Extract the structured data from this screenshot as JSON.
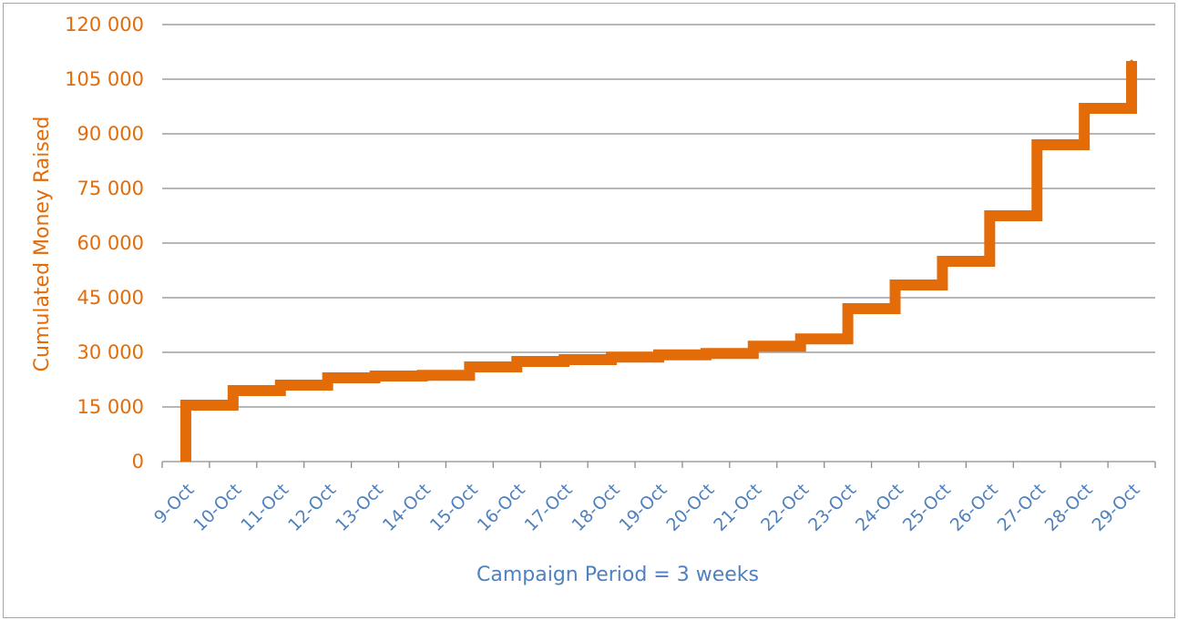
{
  "chart_data": {
    "type": "line",
    "step": true,
    "categories": [
      "9-Oct",
      "10-Oct",
      "11-Oct",
      "12-Oct",
      "13-Oct",
      "14-Oct",
      "15-Oct",
      "16-Oct",
      "17-Oct",
      "18-Oct",
      "19-Oct",
      "20-Oct",
      "21-Oct",
      "22-Oct",
      "23-Oct",
      "24-Oct",
      "25-Oct",
      "26-Oct",
      "27-Oct",
      "28-Oct",
      "29-Oct"
    ],
    "series": [
      {
        "name": "",
        "color": "#e36c09",
        "values": [
          15500,
          19500,
          21000,
          23000,
          23500,
          23700,
          26000,
          27500,
          28000,
          28700,
          29300,
          29700,
          31700,
          33700,
          42000,
          48500,
          55000,
          67500,
          87000,
          97000,
          110000
        ]
      }
    ],
    "ylim": [
      0,
      120000
    ],
    "yticks": [
      0,
      15000,
      30000,
      45000,
      60000,
      75000,
      90000,
      105000,
      120000
    ],
    "ytick_labels": [
      "0",
      "15 000",
      "30 000",
      "45 000",
      "60 000",
      "75 000",
      "90 000",
      "105 000",
      "120 000"
    ],
    "xlabel": "Campaign Period = 3 weeks",
    "ylabel": "Cumulated Money Raised",
    "grid": true,
    "legend": "none",
    "colors": {
      "line": "#e36c09",
      "x_text": "#4f81bd",
      "y_text": "#e36c09",
      "grid": "#8c8c8c"
    }
  }
}
